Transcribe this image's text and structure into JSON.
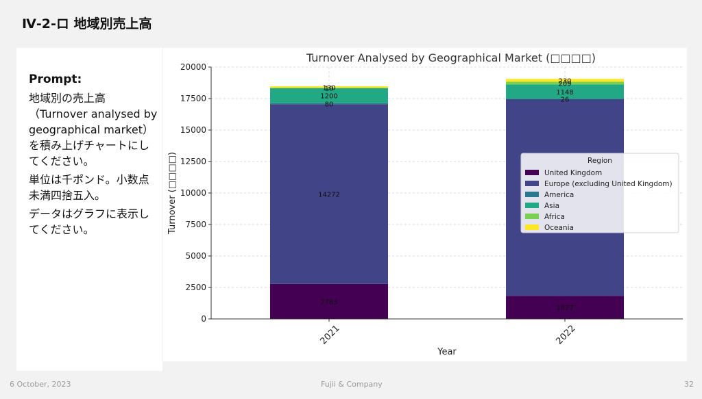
{
  "slide": {
    "title": "Ⅳ-2-ロ 地域別売上高",
    "footer": {
      "date": "6 October, 2023",
      "company": "Fujii & Company",
      "page": "32"
    }
  },
  "prompt": {
    "heading": "Prompt:",
    "body": [
      "地域別の売上高（Turnover analysed by geographical market）を積み上げチャートにしてください。",
      "単位は千ポンド。小数点未満四捨五入。",
      "データはグラフに表示してください。"
    ]
  },
  "chart_data": {
    "type": "bar",
    "stacked": true,
    "title": "Turnover Analysed by Geographical Market (□□□□)",
    "xlabel": "Year",
    "ylabel": "Turnover (□□□□)",
    "categories": [
      "2021",
      "2022"
    ],
    "ylim": [
      0,
      20000
    ],
    "yticks": [
      0,
      2500,
      5000,
      7500,
      10000,
      12500,
      15000,
      17500,
      20000
    ],
    "grid": true,
    "legend": {
      "title": "Region",
      "position": "center-right"
    },
    "series": [
      {
        "name": "United Kingdom",
        "color": "#440154",
        "values": [
          2783,
          1827
        ],
        "labels": [
          "2783",
          "1827"
        ]
      },
      {
        "name": "Europe (excluding United Kingdom)",
        "color": "#414487",
        "values": [
          14272,
          15621
        ],
        "labels": [
          "14272",
          ""
        ]
      },
      {
        "name": "America",
        "color": "#2a788e",
        "values": [
          80,
          26
        ],
        "labels": [
          "80",
          "26"
        ]
      },
      {
        "name": "Asia",
        "color": "#22a884",
        "values": [
          1200,
          1148
        ],
        "labels": [
          "1200",
          "1148"
        ]
      },
      {
        "name": "Africa",
        "color": "#7ad151",
        "values": [
          10,
          209
        ],
        "labels": [
          "10",
          "209"
        ]
      },
      {
        "name": "Oceania",
        "color": "#fde725",
        "values": [
          130,
          230
        ],
        "labels": [
          "130",
          "230"
        ]
      }
    ]
  }
}
